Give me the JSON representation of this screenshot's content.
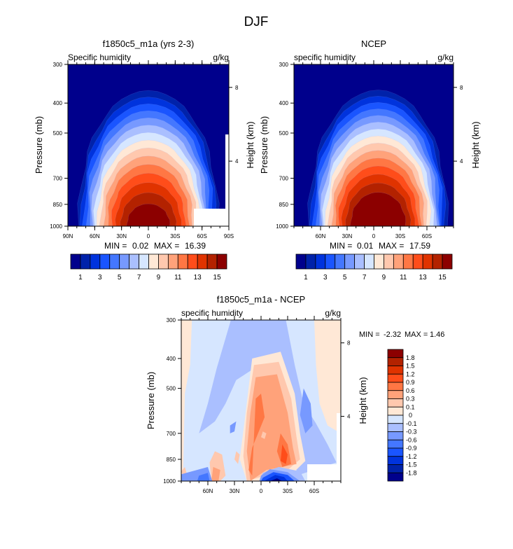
{
  "figure_title": "DJF",
  "chart_data": [
    {
      "type": "heatmap",
      "id": "model",
      "title": "f1850c5_m1a (yrs 2-3)",
      "left_label": "Specific humidity",
      "right_label": "g/kg",
      "ylabel": "Pressure (mb)",
      "ylabel_right": "Height (km)",
      "y_ticks": [
        "300",
        "400",
        "500",
        "700",
        "850",
        "1000"
      ],
      "y_tick_values": [
        300,
        400,
        500,
        700,
        850,
        1000
      ],
      "y_right_ticks": [
        "8",
        "4"
      ],
      "y_right_tick_values": [
        8,
        4
      ],
      "x_ticks": [
        "90N",
        "60N",
        "30N",
        "0",
        "30S",
        "60S",
        "90S"
      ],
      "x_tick_values": [
        90,
        60,
        30,
        0,
        -30,
        -60,
        -90
      ],
      "xlim": [
        90,
        -90
      ],
      "ylim": [
        300,
        1000
      ],
      "min_label": "MIN =",
      "min_value": "0.02",
      "max_label": "MAX =",
      "max_value": "16.39",
      "peak_value": 16.39,
      "peak_lat": 0,
      "colorbar_labels": [
        "1",
        "3",
        "5",
        "7",
        "9",
        "11",
        "13",
        "15"
      ],
      "levels": [
        1,
        2,
        3,
        4,
        5,
        6,
        7,
        8,
        9,
        10,
        11,
        12,
        13,
        14,
        15
      ]
    },
    {
      "type": "heatmap",
      "id": "ncep",
      "title": "NCEP",
      "left_label": "specific humidity",
      "right_label": "g/kg",
      "ylabel": "Pressure (mb)",
      "ylabel_right": "Height (km)",
      "y_ticks": [
        "300",
        "400",
        "500",
        "700",
        "850",
        "1000"
      ],
      "y_tick_values": [
        300,
        400,
        500,
        700,
        850,
        1000
      ],
      "y_right_ticks": [
        "8",
        "4"
      ],
      "y_right_tick_values": [
        8,
        4
      ],
      "x_ticks": [
        "60N",
        "30N",
        "0",
        "30S",
        "60S"
      ],
      "x_tick_values": [
        60,
        30,
        0,
        -30,
        -60
      ],
      "xlim": [
        90,
        -90
      ],
      "ylim": [
        300,
        1000
      ],
      "min_label": "MIN =",
      "min_value": "0.01",
      "max_label": "MAX =",
      "max_value": "17.59",
      "peak_value": 17.59,
      "peak_lat": -5,
      "colorbar_labels": [
        "1",
        "3",
        "5",
        "7",
        "9",
        "11",
        "13",
        "15"
      ],
      "levels": [
        1,
        2,
        3,
        4,
        5,
        6,
        7,
        8,
        9,
        10,
        11,
        12,
        13,
        14,
        15
      ]
    },
    {
      "type": "heatmap",
      "id": "diff",
      "title": "f1850c5_m1a - NCEP",
      "left_label": "specific humidity",
      "right_label": "g/kg",
      "ylabel": "Pressure (mb)",
      "ylabel_right": "Height (km)",
      "y_ticks": [
        "300",
        "400",
        "500",
        "700",
        "850",
        "1000"
      ],
      "y_tick_values": [
        300,
        400,
        500,
        700,
        850,
        1000
      ],
      "y_right_ticks": [
        "8",
        "4"
      ],
      "y_right_tick_values": [
        8,
        4
      ],
      "x_ticks": [
        "60N",
        "30N",
        "0",
        "30S",
        "60S"
      ],
      "x_tick_values": [
        60,
        30,
        0,
        -30,
        -60
      ],
      "xlim": [
        90,
        -90
      ],
      "ylim": [
        300,
        1000
      ],
      "min_label": "MIN =",
      "min_value": "-2.32",
      "max_label": "MAX =",
      "max_value": "1.46",
      "colorbar_labels": [
        "1.8",
        "1.5",
        "1.2",
        "0.9",
        "0.6",
        "0.3",
        "0.1",
        "0",
        "-0.1",
        "-0.3",
        "-0.6",
        "-0.9",
        "-1.2",
        "-1.5",
        "-1.8"
      ],
      "levels": [
        -1.8,
        -1.5,
        -1.2,
        -0.9,
        -0.6,
        -0.3,
        -0.1,
        0,
        0.1,
        0.3,
        0.6,
        0.9,
        1.2,
        1.5,
        1.8
      ]
    }
  ],
  "colors": {
    "palette": [
      "#00008c",
      "#0022aa",
      "#0033dd",
      "#1a55ff",
      "#4477ff",
      "#7799ff",
      "#aabfff",
      "#d6e6ff",
      "#ffe8d6",
      "#ffc8ae",
      "#ffa27a",
      "#ff7744",
      "#ff4d1a",
      "#e03300",
      "#b32200",
      "#8c0000"
    ],
    "missing": "#ffffff",
    "frame": "#000000"
  }
}
